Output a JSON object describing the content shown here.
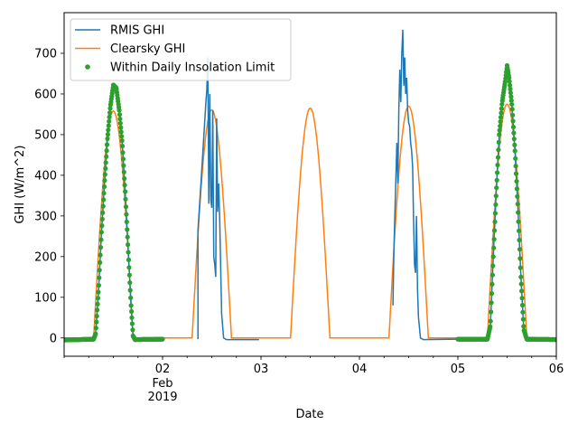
{
  "chart_data": {
    "type": "line",
    "title": "",
    "xlabel": "Date",
    "ylabel": "GHI (W/m^2)",
    "x_unit": "days (calendar time, 2019)",
    "xlim": [
      "2019-02-01 00:00",
      "2019-02-06 00:00"
    ],
    "ylim": [
      -45,
      800
    ],
    "grid": false,
    "legend_position": "top-left",
    "x_ticks": [
      {
        "x": 1.0,
        "label": "02",
        "sub": [
          "Feb",
          "2019"
        ]
      },
      {
        "x": 2.0,
        "label": "03"
      },
      {
        "x": 3.0,
        "label": "04"
      },
      {
        "x": 4.0,
        "label": "05"
      },
      {
        "x": 5.0,
        "label": "06"
      }
    ],
    "y_ticks": [
      0,
      100,
      200,
      300,
      400,
      500,
      600,
      700
    ],
    "legend": [
      {
        "label": "RMIS GHI",
        "kind": "line",
        "color": "#1f77b4"
      },
      {
        "label": "Clearsky GHI",
        "kind": "line",
        "color": "#ff7f0e"
      },
      {
        "label": "Within Daily Insolation Limit",
        "kind": "marker",
        "color": "#2ca02c"
      }
    ],
    "series": [
      {
        "name": "Clearsky GHI",
        "color": "#ff7f0e",
        "style": "line",
        "daily_peaks": [
          {
            "day": "2019-02-01",
            "sunrise": 0.3,
            "noon": 0.5,
            "sunset": 0.7,
            "peak": 558
          },
          {
            "day": "2019-02-02",
            "sunrise": 1.3,
            "noon": 1.5,
            "sunset": 1.7,
            "peak": 561
          },
          {
            "day": "2019-02-03",
            "sunrise": 2.3,
            "noon": 2.5,
            "sunset": 2.7,
            "peak": 565
          },
          {
            "day": "2019-02-04",
            "sunrise": 3.3,
            "noon": 3.5,
            "sunset": 3.7,
            "peak": 570
          },
          {
            "day": "2019-02-05",
            "sunrise": 4.3,
            "noon": 4.5,
            "sunset": 4.7,
            "peak": 575
          }
        ]
      },
      {
        "name": "RMIS GHI",
        "color": "#1f77b4",
        "style": "line",
        "points": [
          [
            0.0,
            -5
          ],
          [
            0.3,
            -3
          ],
          [
            0.32,
            10
          ],
          [
            0.35,
            120
          ],
          [
            0.38,
            260
          ],
          [
            0.41,
            380
          ],
          [
            0.44,
            490
          ],
          [
            0.47,
            570
          ],
          [
            0.5,
            622
          ],
          [
            0.53,
            615
          ],
          [
            0.56,
            560
          ],
          [
            0.59,
            480
          ],
          [
            0.62,
            360
          ],
          [
            0.65,
            220
          ],
          [
            0.68,
            80
          ],
          [
            0.7,
            5
          ],
          [
            0.72,
            -4
          ],
          [
            1.0,
            -3
          ],
          [
            1.36,
            -3
          ],
          [
            1.36,
            265
          ],
          [
            1.39,
            380
          ],
          [
            1.42,
            500
          ],
          [
            1.44,
            580
          ],
          [
            1.45,
            610
          ],
          [
            1.46,
            690
          ],
          [
            1.47,
            330
          ],
          [
            1.48,
            600
          ],
          [
            1.49,
            340
          ],
          [
            1.5,
            320
          ],
          [
            1.51,
            560
          ],
          [
            1.52,
            200
          ],
          [
            1.53,
            180
          ],
          [
            1.54,
            150
          ],
          [
            1.55,
            540
          ],
          [
            1.56,
            310
          ],
          [
            1.57,
            380
          ],
          [
            1.58,
            300
          ],
          [
            1.59,
            180
          ],
          [
            1.6,
            60
          ],
          [
            1.62,
            0
          ],
          [
            1.65,
            -4
          ],
          [
            1.98,
            -4
          ],
          [
            3.34,
            80
          ],
          [
            3.35,
            220
          ],
          [
            3.36,
            300
          ],
          [
            3.38,
            480
          ],
          [
            3.39,
            380
          ],
          [
            3.4,
            560
          ],
          [
            3.41,
            660
          ],
          [
            3.42,
            580
          ],
          [
            3.43,
            700
          ],
          [
            3.44,
            758
          ],
          [
            3.45,
            620
          ],
          [
            3.46,
            690
          ],
          [
            3.47,
            600
          ],
          [
            3.48,
            640
          ],
          [
            3.49,
            560
          ],
          [
            3.5,
            530
          ],
          [
            3.51,
            520
          ],
          [
            3.52,
            480
          ],
          [
            3.53,
            460
          ],
          [
            3.54,
            420
          ],
          [
            3.55,
            290
          ],
          [
            3.56,
            180
          ],
          [
            3.57,
            160
          ],
          [
            3.58,
            300
          ],
          [
            3.59,
            120
          ],
          [
            3.6,
            50
          ],
          [
            3.62,
            0
          ],
          [
            3.65,
            -4
          ],
          [
            4.0,
            -3
          ],
          [
            4.3,
            -3
          ],
          [
            4.33,
            30
          ],
          [
            4.36,
            200
          ],
          [
            4.39,
            360
          ],
          [
            4.42,
            500
          ],
          [
            4.45,
            580
          ],
          [
            4.48,
            630
          ],
          [
            4.5,
            670
          ],
          [
            4.52,
            640
          ],
          [
            4.55,
            570
          ],
          [
            4.58,
            460
          ],
          [
            4.61,
            320
          ],
          [
            4.64,
            150
          ],
          [
            4.67,
            20
          ],
          [
            4.7,
            -3
          ],
          [
            5.0,
            -4
          ]
        ]
      },
      {
        "name": "Within Daily Insolation Limit",
        "color": "#2ca02c",
        "style": "markers",
        "segments": [
          {
            "from": 0.0,
            "to": 1.0,
            "source": "RMIS GHI"
          },
          {
            "from": 4.0,
            "to": 5.0,
            "source": "RMIS GHI"
          }
        ]
      }
    ]
  }
}
